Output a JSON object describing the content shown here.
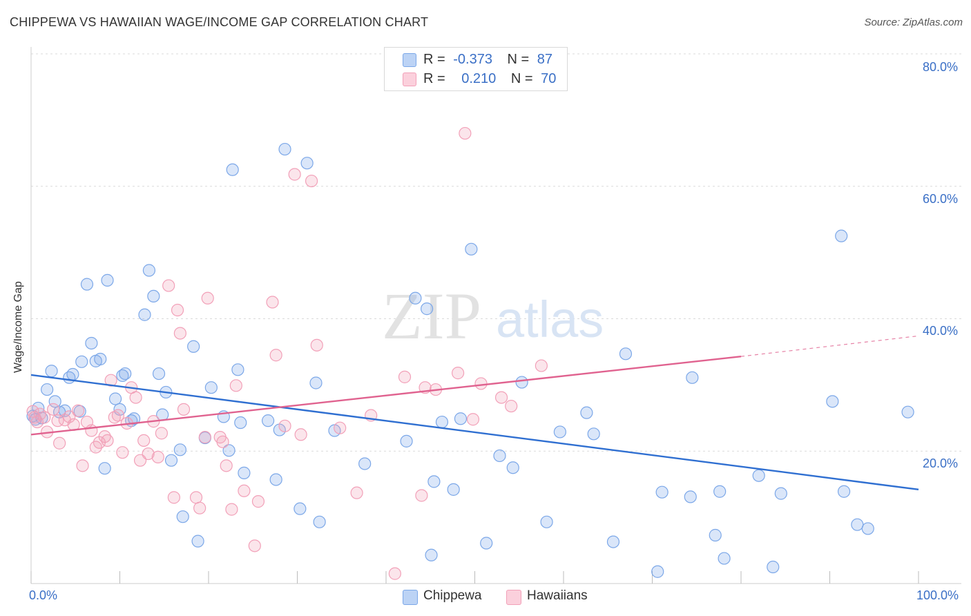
{
  "title": "CHIPPEWA VS HAWAIIAN WAGE/INCOME GAP CORRELATION CHART",
  "source": "Source: ZipAtlas.com",
  "watermark": {
    "zip": "ZIP",
    "atlas": "atlas"
  },
  "legend_top": {
    "rows": [
      {
        "r_label": "R =",
        "r_value": "-0.373",
        "n_label": "N =",
        "n_value": "87",
        "color": "#7ba7e8"
      },
      {
        "r_label": "R =",
        "r_value": "0.210",
        "n_label": "N =",
        "n_value": "70",
        "color": "#f2a0b8"
      }
    ]
  },
  "legend_bottom": {
    "items": [
      {
        "label": "Chippewa",
        "color": "#7ba7e8"
      },
      {
        "label": "Hawaiians",
        "color": "#f2a0b8"
      }
    ]
  },
  "chart_data": {
    "type": "scatter",
    "title": "CHIPPEWA VS HAWAIIAN WAGE/INCOME GAP CORRELATION CHART",
    "xlabel": "",
    "ylabel": "Wage/Income Gap",
    "x_tick_labels": [
      "0.0%",
      "100.0%"
    ],
    "y_tick_labels": [
      "20.0%",
      "40.0%",
      "60.0%",
      "80.0%"
    ],
    "xlim": [
      0,
      100
    ],
    "ylim": [
      0,
      80
    ],
    "grid": true,
    "legend_position": "top-center",
    "series": [
      {
        "name": "Chippewa",
        "color": "#7ba7e8",
        "trend_color": "#2f6fd1",
        "r": -0.373,
        "n": 87,
        "trend": {
          "x0": 0,
          "y0": 31.5,
          "x1": 100,
          "y1": 14.2
        },
        "points": [
          [
            0.2,
            25.3
          ],
          [
            0.5,
            24.8
          ],
          [
            0.8,
            26.5
          ],
          [
            1.2,
            25.0
          ],
          [
            1.8,
            29.3
          ],
          [
            2.3,
            32.1
          ],
          [
            2.7,
            27.5
          ],
          [
            3.2,
            25.9
          ],
          [
            3.8,
            26.1
          ],
          [
            4.3,
            31.1
          ],
          [
            4.7,
            31.6
          ],
          [
            5.5,
            26.0
          ],
          [
            5.7,
            33.5
          ],
          [
            6.3,
            45.2
          ],
          [
            6.8,
            36.3
          ],
          [
            7.3,
            33.6
          ],
          [
            7.8,
            33.9
          ],
          [
            8.3,
            17.4
          ],
          [
            8.6,
            45.8
          ],
          [
            9.5,
            27.9
          ],
          [
            10.0,
            26.3
          ],
          [
            10.3,
            31.4
          ],
          [
            10.6,
            31.7
          ],
          [
            11.3,
            24.6
          ],
          [
            11.6,
            24.9
          ],
          [
            12.8,
            40.6
          ],
          [
            13.3,
            47.3
          ],
          [
            13.8,
            43.4
          ],
          [
            14.4,
            31.7
          ],
          [
            14.8,
            25.5
          ],
          [
            15.2,
            28.9
          ],
          [
            15.8,
            18.6
          ],
          [
            16.8,
            20.2
          ],
          [
            17.1,
            10.1
          ],
          [
            18.3,
            35.8
          ],
          [
            18.8,
            6.4
          ],
          [
            19.6,
            22.0
          ],
          [
            20.3,
            29.6
          ],
          [
            21.7,
            25.2
          ],
          [
            22.3,
            20.1
          ],
          [
            22.7,
            62.5
          ],
          [
            23.3,
            32.3
          ],
          [
            23.6,
            24.3
          ],
          [
            24.0,
            16.7
          ],
          [
            26.7,
            24.6
          ],
          [
            27.6,
            15.7
          ],
          [
            28.0,
            23.2
          ],
          [
            28.6,
            65.6
          ],
          [
            30.3,
            11.3
          ],
          [
            31.1,
            63.5
          ],
          [
            32.1,
            30.3
          ],
          [
            32.5,
            9.3
          ],
          [
            34.2,
            23.1
          ],
          [
            37.6,
            18.1
          ],
          [
            42.3,
            21.5
          ],
          [
            43.3,
            43.1
          ],
          [
            44.6,
            41.5
          ],
          [
            45.1,
            4.3
          ],
          [
            45.4,
            15.4
          ],
          [
            46.3,
            24.4
          ],
          [
            47.6,
            14.2
          ],
          [
            48.4,
            24.9
          ],
          [
            49.6,
            50.5
          ],
          [
            51.3,
            6.1
          ],
          [
            52.8,
            19.3
          ],
          [
            54.3,
            17.5
          ],
          [
            55.3,
            30.4
          ],
          [
            58.1,
            9.3
          ],
          [
            59.6,
            22.9
          ],
          [
            62.6,
            25.8
          ],
          [
            63.4,
            22.6
          ],
          [
            65.6,
            6.3
          ],
          [
            67.0,
            34.7
          ],
          [
            70.6,
            1.8
          ],
          [
            71.1,
            13.8
          ],
          [
            74.3,
            13.1
          ],
          [
            74.5,
            31.1
          ],
          [
            77.1,
            7.3
          ],
          [
            77.6,
            13.9
          ],
          [
            78.1,
            3.8
          ],
          [
            82.0,
            16.3
          ],
          [
            83.6,
            2.5
          ],
          [
            84.5,
            13.6
          ],
          [
            90.3,
            27.5
          ],
          [
            91.3,
            52.5
          ],
          [
            91.6,
            13.9
          ],
          [
            93.1,
            8.9
          ],
          [
            94.3,
            8.3
          ],
          [
            98.8,
            25.9
          ]
        ]
      },
      {
        "name": "Hawaiians",
        "color": "#f2a0b8",
        "trend_color": "#e0628f",
        "r": 0.21,
        "n": 70,
        "trend": {
          "x0": 0,
          "y0": 22.5,
          "x1": 80,
          "y1": 34.3
        },
        "trend_dashed_to": {
          "x": 100,
          "y": 37.4
        },
        "points": [
          [
            0.2,
            26.0
          ],
          [
            0.4,
            25.1
          ],
          [
            0.7,
            24.4
          ],
          [
            1.0,
            25.6
          ],
          [
            1.5,
            25.1
          ],
          [
            1.8,
            22.9
          ],
          [
            2.5,
            26.3
          ],
          [
            3.0,
            24.6
          ],
          [
            3.2,
            21.2
          ],
          [
            3.8,
            24.7
          ],
          [
            4.3,
            25.2
          ],
          [
            4.8,
            24.0
          ],
          [
            5.3,
            26.1
          ],
          [
            5.8,
            17.8
          ],
          [
            6.3,
            24.4
          ],
          [
            6.8,
            23.1
          ],
          [
            7.3,
            20.6
          ],
          [
            7.7,
            21.3
          ],
          [
            8.3,
            22.2
          ],
          [
            8.6,
            21.6
          ],
          [
            9.0,
            30.7
          ],
          [
            9.4,
            25.1
          ],
          [
            9.8,
            25.4
          ],
          [
            10.3,
            19.8
          ],
          [
            10.8,
            24.2
          ],
          [
            11.3,
            29.6
          ],
          [
            11.8,
            28.1
          ],
          [
            12.3,
            18.6
          ],
          [
            12.7,
            21.6
          ],
          [
            13.2,
            19.6
          ],
          [
            13.8,
            24.5
          ],
          [
            14.3,
            19.1
          ],
          [
            14.7,
            22.7
          ],
          [
            15.5,
            45.0
          ],
          [
            16.1,
            13.0
          ],
          [
            16.5,
            41.3
          ],
          [
            16.8,
            37.8
          ],
          [
            17.2,
            26.3
          ],
          [
            18.6,
            13.0
          ],
          [
            19.0,
            11.4
          ],
          [
            19.6,
            22.1
          ],
          [
            19.9,
            43.1
          ],
          [
            21.3,
            22.1
          ],
          [
            21.6,
            21.4
          ],
          [
            22.0,
            17.8
          ],
          [
            22.6,
            11.2
          ],
          [
            23.1,
            29.9
          ],
          [
            24.0,
            14.0
          ],
          [
            25.2,
            5.7
          ],
          [
            25.6,
            12.4
          ],
          [
            27.2,
            42.5
          ],
          [
            27.6,
            34.5
          ],
          [
            28.6,
            23.8
          ],
          [
            29.7,
            61.8
          ],
          [
            30.4,
            22.5
          ],
          [
            31.6,
            60.8
          ],
          [
            32.2,
            36.0
          ],
          [
            34.8,
            23.5
          ],
          [
            36.7,
            13.7
          ],
          [
            38.3,
            25.4
          ],
          [
            41.0,
            1.5
          ],
          [
            42.1,
            31.2
          ],
          [
            44.0,
            13.3
          ],
          [
            44.4,
            29.6
          ],
          [
            45.6,
            29.3
          ],
          [
            48.1,
            31.8
          ],
          [
            48.9,
            68.0
          ],
          [
            49.8,
            24.8
          ],
          [
            50.7,
            30.2
          ],
          [
            53.0,
            28.1
          ],
          [
            54.1,
            26.8
          ],
          [
            57.5,
            32.9
          ]
        ]
      }
    ]
  }
}
